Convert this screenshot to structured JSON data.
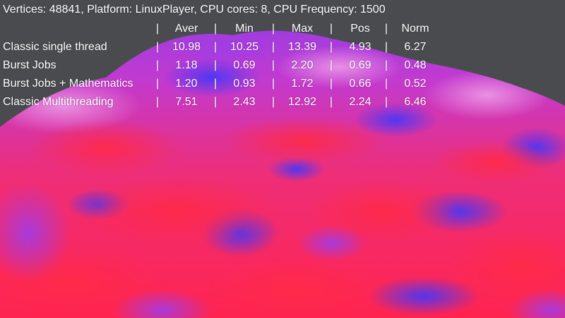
{
  "hud": {
    "info": "Vertices: 48841, Platform: LinuxPlayer, CPU cores: 8, CPU Frequency: 1500",
    "separator": "|",
    "columns": [
      "Aver",
      "Min",
      "Max",
      "Pos",
      "Norm"
    ],
    "rows": [
      {
        "label": "Classic single thread",
        "values": [
          "10.98",
          "10.25",
          "13.39",
          "4.93",
          "6.27"
        ]
      },
      {
        "label": "Burst Jobs",
        "values": [
          "1.18",
          "0.69",
          "2.20",
          "0.69",
          "0.48"
        ]
      },
      {
        "label": "Burst Jobs + Mathematics",
        "values": [
          "1.20",
          "0.93",
          "1.72",
          "0.66",
          "0.52"
        ]
      },
      {
        "label": "Classic Multithreading",
        "values": [
          "7.51",
          "2.43",
          "12.92",
          "2.24",
          "6.46"
        ]
      }
    ]
  },
  "scene": {
    "background": "#4a4b4e",
    "colors": [
      "#ff2a52",
      "#e83ab8",
      "#9a3cf0",
      "#5a3cf8"
    ]
  }
}
